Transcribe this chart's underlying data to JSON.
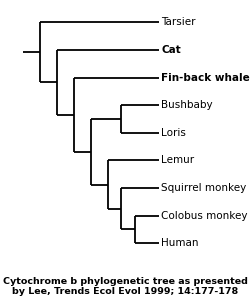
{
  "title": "Cytochrome b phylogenetic tree as presented\nby Lee, Trends Ecol Evol 1999; 14:177-178",
  "taxa": [
    "Tarsier",
    "Cat",
    "Fin-back whale",
    "Bushbaby",
    "Loris",
    "Lemur",
    "Squirrel monkey",
    "Colobus monkey",
    "Human"
  ],
  "bold_taxa": [
    "Cat",
    "Fin-back whale"
  ],
  "background_color": "#ffffff",
  "line_color": "#000000",
  "line_width": 1.3,
  "taxa_fontsize": 7.5,
  "title_fontsize": 6.8
}
